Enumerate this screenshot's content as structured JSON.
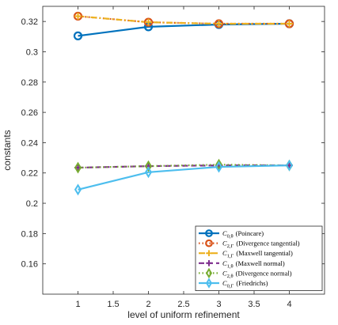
{
  "chart_data": {
    "type": "line",
    "xlabel": "level of uniform refinement",
    "ylabel": "constants",
    "xlim": [
      0.5,
      4.5
    ],
    "ylim": [
      0.14,
      0.33
    ],
    "xticks": [
      "1",
      "1.5",
      "2",
      "2.5",
      "3",
      "3.5",
      "4"
    ],
    "yticks": [
      "0.16",
      "0.18",
      "0.2",
      "0.22",
      "0.24",
      "0.26",
      "0.28",
      "0.3",
      "0.32"
    ],
    "grid": false,
    "legend_position": "bottom-right",
    "x": [
      1,
      2,
      3,
      4
    ],
    "series": [
      {
        "name": "C_{0,θ} (Poincare)",
        "symbol_main": "C",
        "symbol_sub": "0,θ",
        "label_text": "(Poincare)",
        "values": [
          0.3105,
          0.3165,
          0.318,
          0.3185
        ],
        "color": "#0072BD",
        "linestyle": "solid",
        "marker": "circle"
      },
      {
        "name": "C_{2,Γ} (Divergence tangential)",
        "symbol_main": "C",
        "symbol_sub": "2,Γ",
        "label_text": "(Divergence tangential)",
        "values": [
          0.3235,
          0.3195,
          0.3185,
          0.3185
        ],
        "color": "#D95319",
        "linestyle": "dotted",
        "marker": "circle"
      },
      {
        "name": "C_{1,Γ} (Maxwell tangential)",
        "symbol_main": "C",
        "symbol_sub": "1,Γ",
        "label_text": "(Maxwell tangential)",
        "values": [
          0.3235,
          0.3195,
          0.3185,
          0.3185
        ],
        "color": "#EDB120",
        "linestyle": "dashdot",
        "marker": "plus"
      },
      {
        "name": "C_{1,θ} (Maxwell normal)",
        "symbol_main": "C",
        "symbol_sub": "1,θ",
        "label_text": "(Maxwell normal)",
        "values": [
          0.2235,
          0.2245,
          0.225,
          0.225
        ],
        "color": "#7E2F8E",
        "linestyle": "dashed",
        "marker": "plus"
      },
      {
        "name": "C_{2,θ} (Divergence normal)",
        "symbol_main": "C",
        "symbol_sub": "2,θ",
        "label_text": "(Divergence normal)",
        "values": [
          0.2235,
          0.2245,
          0.2255,
          0.225
        ],
        "color": "#77AC30",
        "linestyle": "dotted",
        "marker": "diamond"
      },
      {
        "name": "C_{0,Γ} (Friedrichs)",
        "symbol_main": "C",
        "symbol_sub": "0,Γ",
        "label_text": "(Friedrichs)",
        "values": [
          0.209,
          0.2205,
          0.224,
          0.225
        ],
        "color": "#4DBEEE",
        "linestyle": "solid",
        "marker": "diamond"
      }
    ]
  }
}
